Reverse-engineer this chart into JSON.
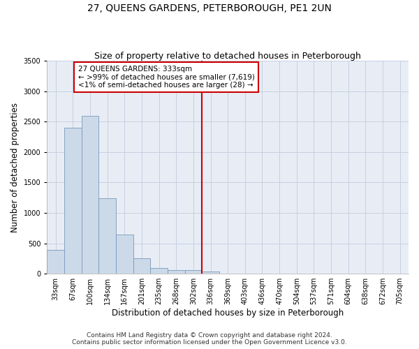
{
  "title": "27, QUEENS GARDENS, PETERBOROUGH, PE1 2UN",
  "subtitle": "Size of property relative to detached houses in Peterborough",
  "xlabel": "Distribution of detached houses by size in Peterborough",
  "ylabel": "Number of detached properties",
  "bar_labels": [
    "33sqm",
    "67sqm",
    "100sqm",
    "134sqm",
    "167sqm",
    "201sqm",
    "235sqm",
    "268sqm",
    "302sqm",
    "336sqm",
    "369sqm",
    "403sqm",
    "436sqm",
    "470sqm",
    "504sqm",
    "537sqm",
    "571sqm",
    "604sqm",
    "638sqm",
    "672sqm",
    "705sqm"
  ],
  "bar_values": [
    390,
    2400,
    2590,
    1240,
    640,
    250,
    90,
    55,
    55,
    35,
    0,
    0,
    0,
    0,
    0,
    0,
    0,
    0,
    0,
    0,
    0
  ],
  "bar_color": "#ccd9e8",
  "bar_edge_color": "#7799bb",
  "vline_x_idx": 9,
  "vline_color": "#cc0000",
  "annotation_box_text": "27 QUEENS GARDENS: 333sqm\n← >99% of detached houses are smaller (7,619)\n<1% of semi-detached houses are larger (28) →",
  "annotation_box_color": "#cc0000",
  "annotation_box_bg": "#ffffff",
  "ylim": [
    0,
    3500
  ],
  "yticks": [
    0,
    500,
    1000,
    1500,
    2000,
    2500,
    3000,
    3500
  ],
  "grid_color": "#c8cfe0",
  "bg_color": "#e8edf5",
  "footer_line1": "Contains HM Land Registry data © Crown copyright and database right 2024.",
  "footer_line2": "Contains public sector information licensed under the Open Government Licence v3.0.",
  "title_fontsize": 10,
  "subtitle_fontsize": 9,
  "xlabel_fontsize": 8.5,
  "ylabel_fontsize": 8.5,
  "tick_fontsize": 7,
  "footer_fontsize": 6.5,
  "annot_fontsize": 7.5
}
